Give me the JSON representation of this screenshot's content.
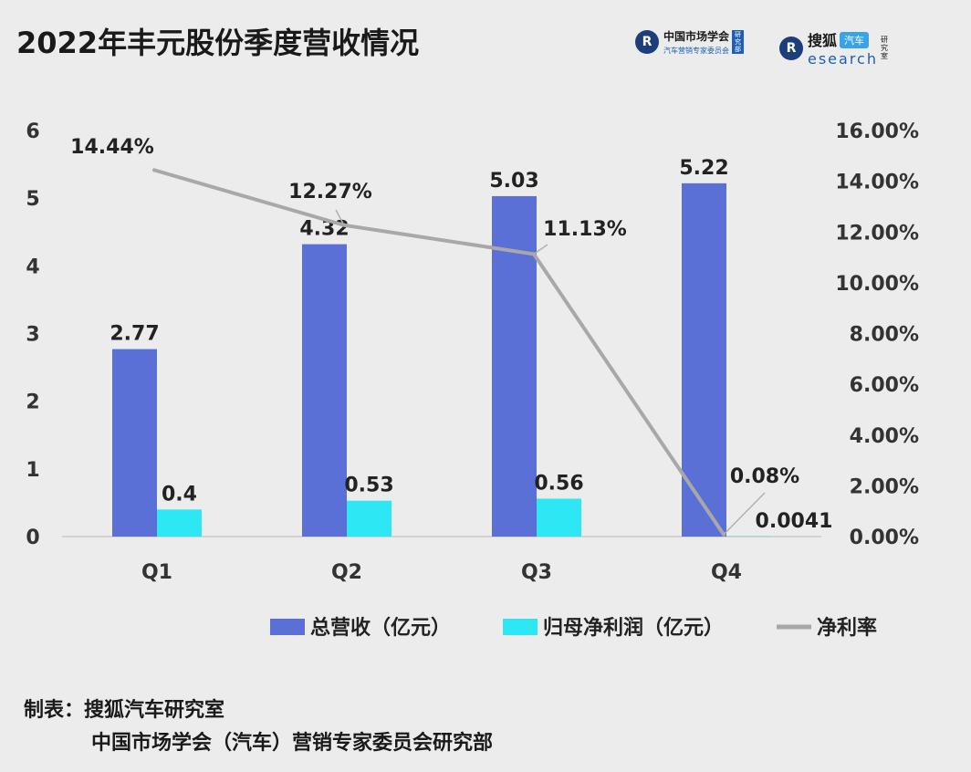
{
  "header": {
    "title": "2022年丰元股份季度营收情况",
    "logo_a_mark": "R",
    "logo_a_name": "中国市场学会",
    "logo_a_sub": "汽车营销专家委员会",
    "logo_a_tag": "研究部",
    "logo_b_mark": "R",
    "logo_b_sohu": "搜狐",
    "logo_b_car": "汽车",
    "logo_b_research": "esearch",
    "logo_b_tag": "研究室"
  },
  "chart_data": {
    "type": "bar",
    "title": "2022年丰元股份季度营收情况",
    "categories": [
      "Q1",
      "Q2",
      "Q3",
      "Q4"
    ],
    "series": [
      {
        "name": "总营收（亿元）",
        "type": "bar",
        "axis": "left",
        "color": "#5b70d6",
        "values": [
          2.77,
          4.32,
          5.03,
          5.22
        ],
        "labels": [
          "2.77",
          "4.32",
          "5.03",
          "5.22"
        ]
      },
      {
        "name": "归母净利润（亿元）",
        "type": "bar",
        "axis": "left",
        "color": "#2ee7f5",
        "values": [
          0.4,
          0.53,
          0.56,
          0.0041
        ],
        "labels": [
          "0.4",
          "0.53",
          "0.56",
          "0.0041"
        ]
      },
      {
        "name": "净利率",
        "type": "line",
        "axis": "right",
        "color": "#a8a8a8",
        "values": [
          14.44,
          12.27,
          11.13,
          0.08
        ],
        "labels": [
          "14.44%",
          "12.27%",
          "11.13%",
          "0.08%"
        ]
      }
    ],
    "y_left": {
      "min": 0,
      "max": 6,
      "ticks": [
        "0",
        "1",
        "2",
        "3",
        "4",
        "5",
        "6"
      ]
    },
    "y_right": {
      "min": 0,
      "max": 16,
      "ticks": [
        "0.00%",
        "2.00%",
        "4.00%",
        "6.00%",
        "8.00%",
        "10.00%",
        "12.00%",
        "14.00%",
        "16.00%"
      ]
    },
    "grid": false,
    "legend_position": "bottom-right"
  },
  "footer": {
    "line1": "制表：搜狐汽车研究室",
    "line2": "中国市场学会（汽车）营销专家委员会研究部"
  }
}
